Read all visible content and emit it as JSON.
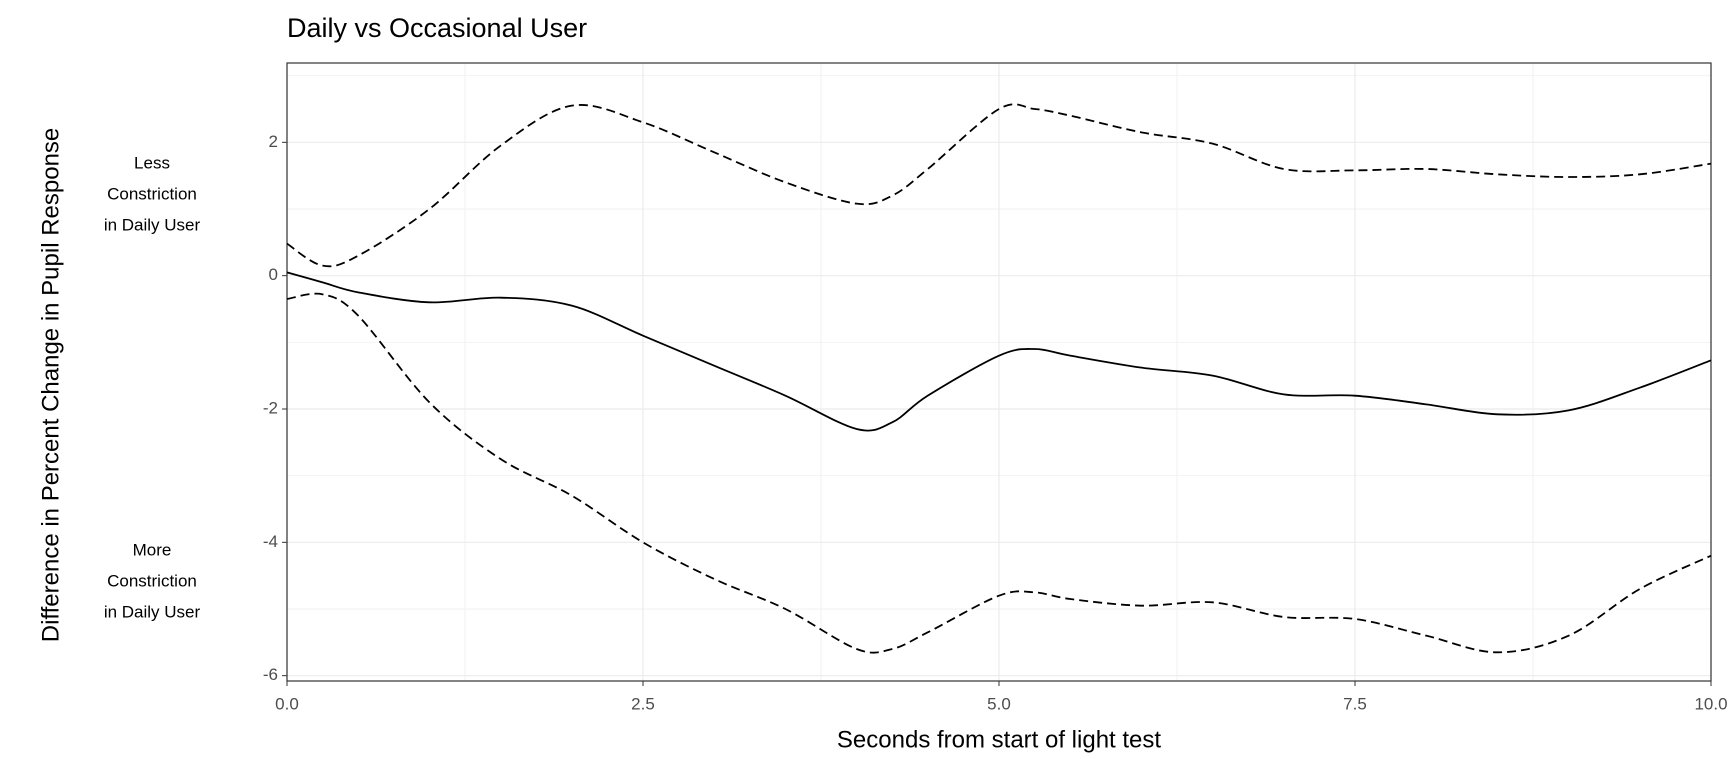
{
  "chart_data": {
    "type": "line",
    "title": "Daily vs Occasional User",
    "x_label": "Seconds from start of light test",
    "y_label": "Difference in Percent Change in Pupil Response",
    "annotations": [
      {
        "lines": [
          "Less",
          "Constriction",
          "in Daily User"
        ]
      },
      {
        "lines": [
          "More",
          "Constriction",
          "in Daily User"
        ]
      }
    ],
    "x": [
      0,
      0.25,
      0.5,
      1,
      1.5,
      2,
      2.5,
      3,
      3.5,
      4,
      4.25,
      4.5,
      5,
      5.25,
      5.5,
      6,
      6.5,
      7,
      7.5,
      8,
      8.5,
      9,
      9.5,
      10
    ],
    "series": [
      {
        "color": "#000000",
        "line_style": "solid",
        "values": [
          0.05,
          -0.1,
          -0.25,
          -0.4,
          -0.33,
          -0.45,
          -0.9,
          -1.35,
          -1.8,
          -2.3,
          -2.2,
          -1.8,
          -1.2,
          -1.1,
          -1.2,
          -1.38,
          -1.5,
          -1.78,
          -1.8,
          -1.93,
          -2.08,
          -2.02,
          -1.68,
          -1.27
        ]
      },
      {
        "color": "#000000",
        "line_style": "dashed",
        "values": [
          0.48,
          0.15,
          0.3,
          1.0,
          1.95,
          2.55,
          2.3,
          1.85,
          1.4,
          1.08,
          1.2,
          1.6,
          2.5,
          2.5,
          2.4,
          2.15,
          1.98,
          1.6,
          1.58,
          1.6,
          1.52,
          1.48,
          1.52,
          1.68
        ]
      },
      {
        "color": "#000000",
        "line_style": "dashed",
        "values": [
          -0.35,
          -0.28,
          -0.6,
          -1.9,
          -2.75,
          -3.3,
          -4.0,
          -4.55,
          -5.0,
          -5.6,
          -5.6,
          -5.35,
          -4.8,
          -4.75,
          -4.85,
          -4.95,
          -4.9,
          -5.12,
          -5.15,
          -5.4,
          -5.65,
          -5.4,
          -4.7,
          -4.2
        ]
      }
    ],
    "xlim": [
      0,
      10
    ],
    "ylim": [
      -6.08,
      3.19
    ],
    "xticks": [
      {
        "value": 0,
        "label": "0.0"
      },
      2.5,
      {
        "value": 5,
        "label": "5.0"
      },
      7.5,
      {
        "value": 10,
        "label": "10.0"
      }
    ],
    "yticks": [
      -6,
      -4,
      -2,
      0,
      2
    ],
    "x_minor_grid": [
      1.25,
      3.75,
      6.25,
      8.75
    ],
    "y_minor_grid": [
      -5,
      -3,
      -1,
      1,
      3
    ],
    "grid": true
  }
}
